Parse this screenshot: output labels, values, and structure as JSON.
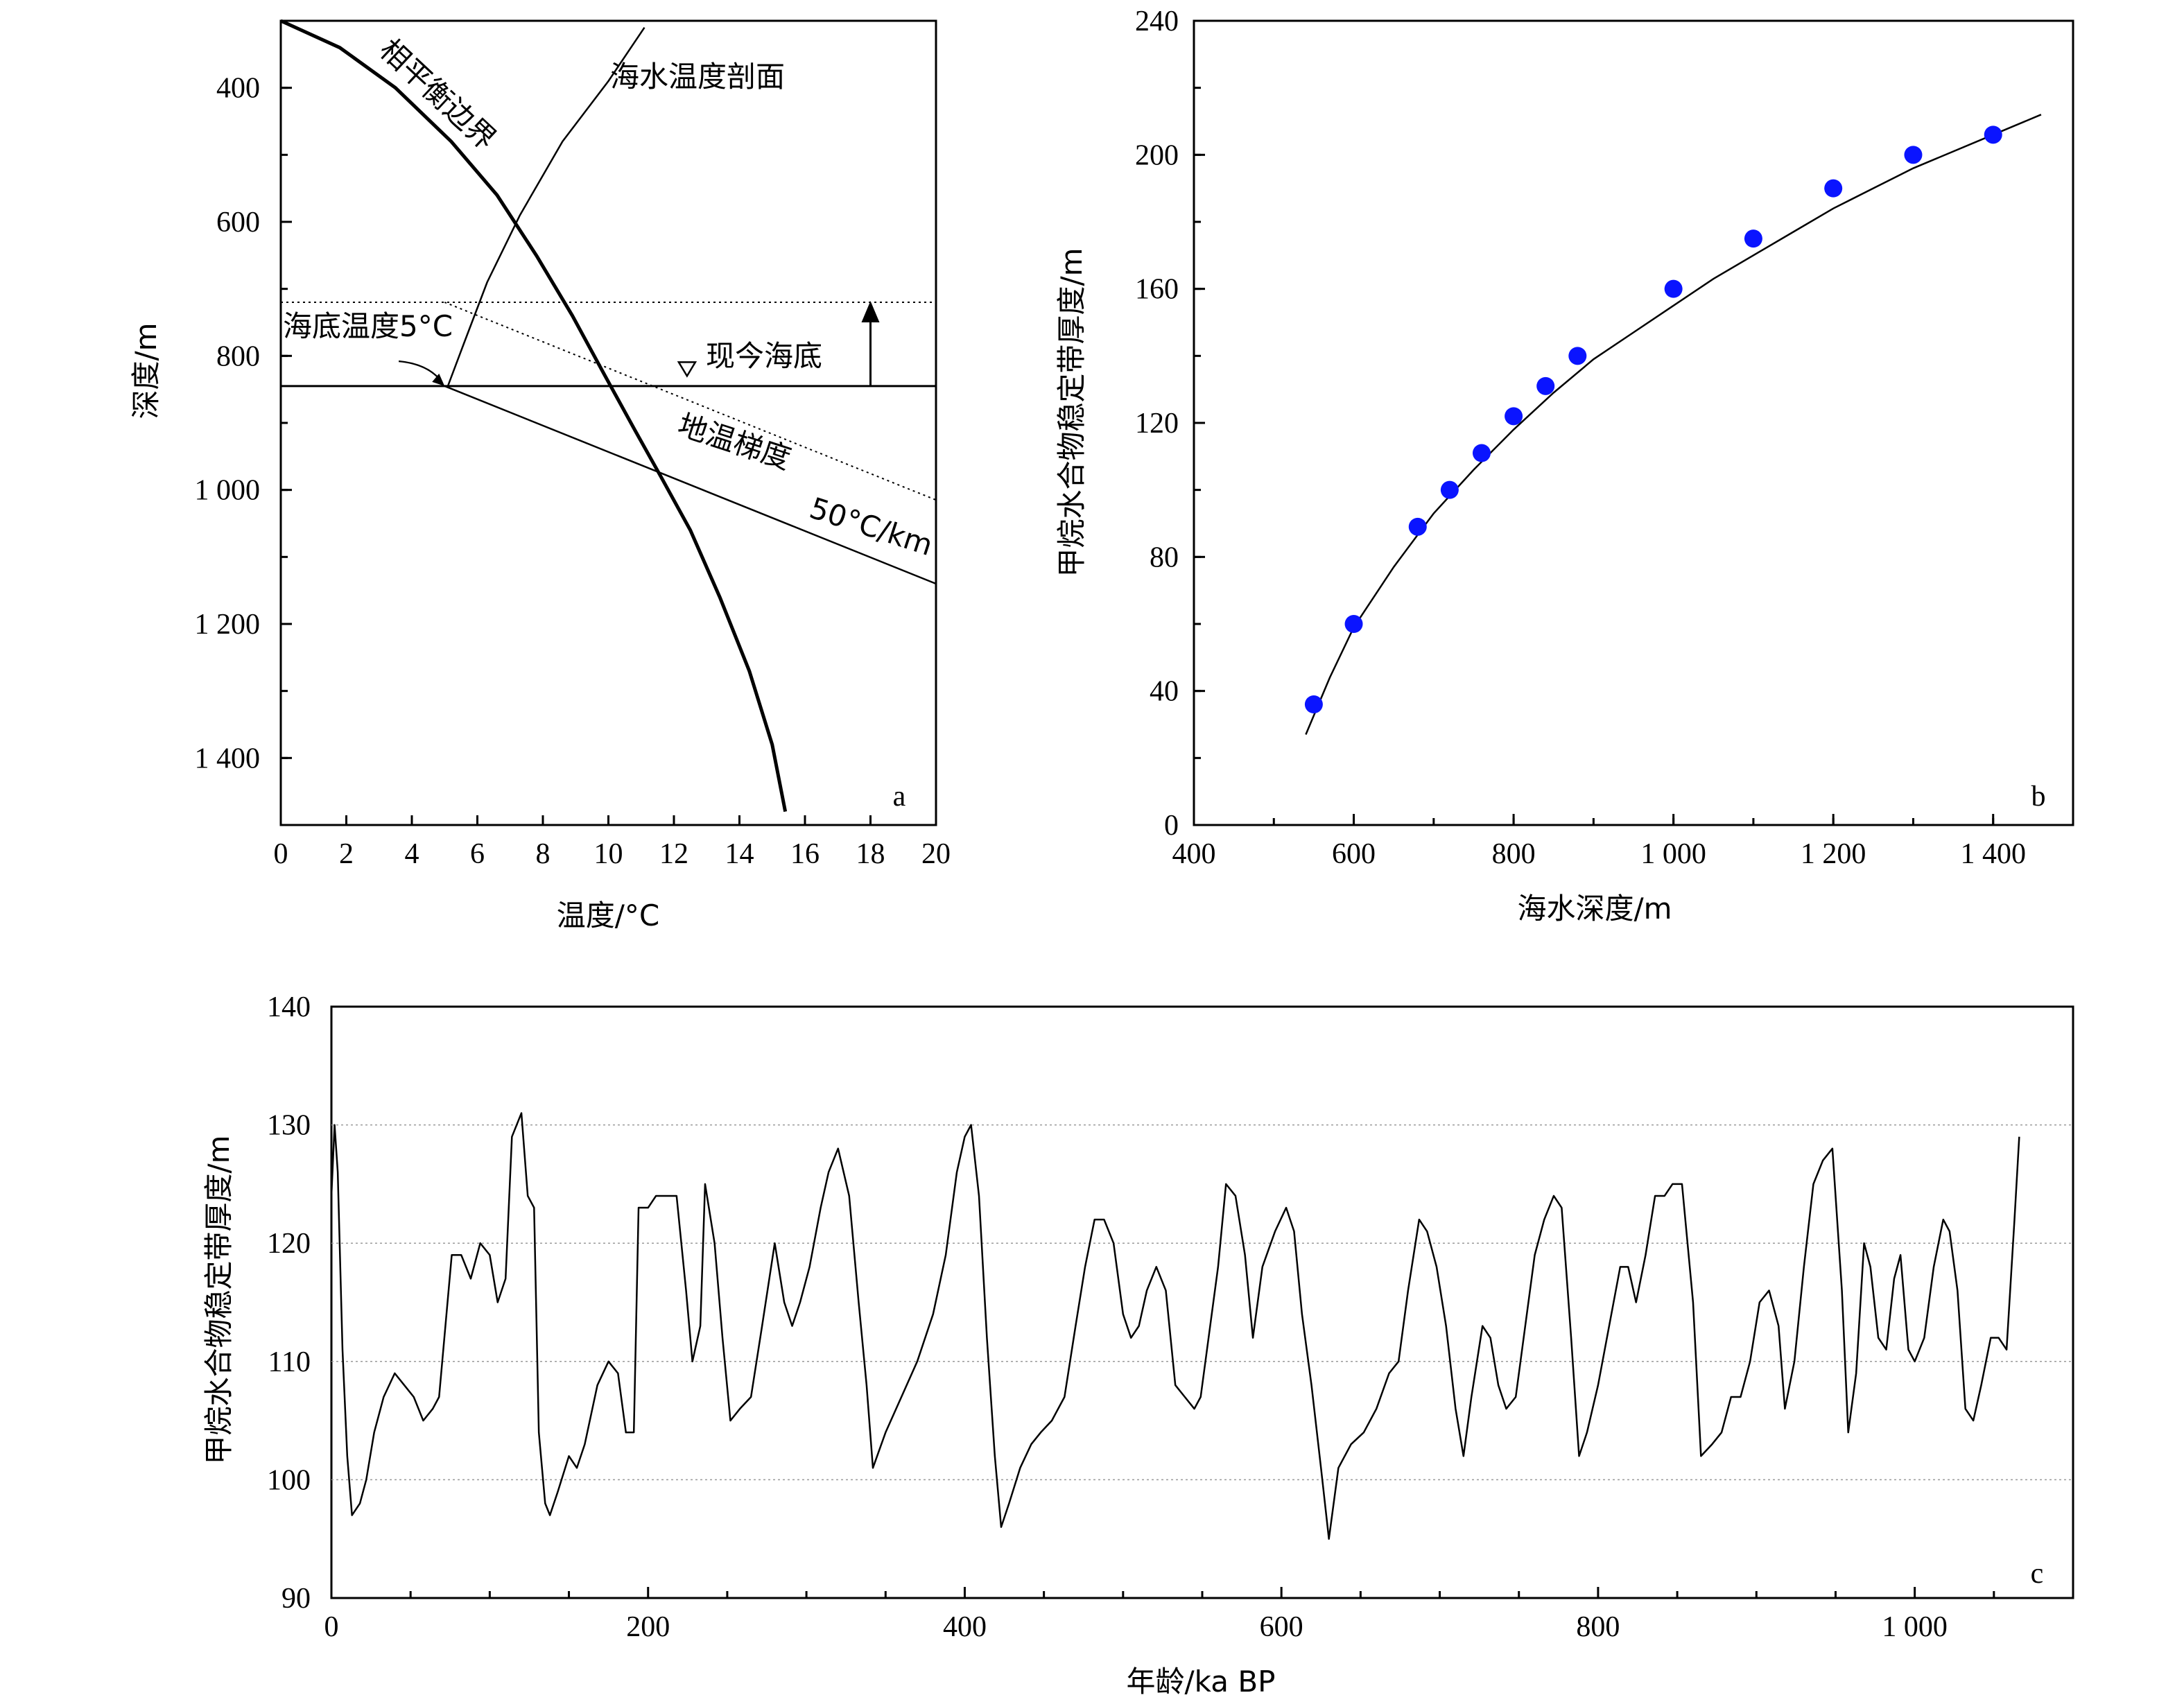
{
  "chart_data": [
    {
      "panel": "a",
      "type": "line",
      "xlabel": "温度/°C",
      "ylabel": "深度/m",
      "xlim": [
        0,
        20
      ],
      "ylim": [
        300,
        1500
      ],
      "y_inverted": true,
      "xticks": [
        "0",
        "2",
        "4",
        "6",
        "8",
        "10",
        "12",
        "14",
        "16",
        "18",
        "20"
      ],
      "yticks": [
        {
          "value": 400,
          "label": "400"
        },
        {
          "value": 600,
          "label": "600"
        },
        {
          "value": 800,
          "label": "800"
        },
        {
          "value": 1000,
          "label": "1 000"
        },
        {
          "value": 1200,
          "label": "1 200"
        },
        {
          "value": 1400,
          "label": "1 400"
        }
      ],
      "series": [
        {
          "name": "相平衡边界",
          "style": "thick",
          "points": [
            [
              0,
              300
            ],
            [
              1.8,
              340
            ],
            [
              3.5,
              400
            ],
            [
              5.2,
              480
            ],
            [
              6.6,
              560
            ],
            [
              7.8,
              650
            ],
            [
              8.9,
              740
            ],
            [
              9.9,
              830
            ],
            [
              10.8,
              910
            ],
            [
              11.6,
              980
            ],
            [
              12.5,
              1060
            ],
            [
              13.4,
              1160
            ],
            [
              14.3,
              1270
            ],
            [
              15.0,
              1380
            ],
            [
              15.4,
              1480
            ]
          ]
        },
        {
          "name": "海水温度剖面",
          "style": "thin",
          "points": [
            [
              5.1,
              845
            ],
            [
              5.6,
              780
            ],
            [
              6.3,
              690
            ],
            [
              7.3,
              590
            ],
            [
              8.6,
              480
            ],
            [
              10.0,
              390
            ],
            [
              11.1,
              310
            ]
          ]
        },
        {
          "name": "地温梯度",
          "style": "thin",
          "points": [
            [
              5.0,
              845
            ],
            [
              20.0,
              1140
            ]
          ]
        },
        {
          "name": "",
          "style": "dotted",
          "points": [
            [
              5.0,
              720
            ],
            [
              20.0,
              1015
            ]
          ]
        }
      ],
      "hlines": [
        {
          "y": 845,
          "style": "solid"
        },
        {
          "y": 720,
          "style": "dotted"
        }
      ],
      "annotations": {
        "phase_boundary": "相平衡边界",
        "water_profile": "海水温度剖面",
        "seafloor_temp": "海底温度5°C",
        "present_seafloor": "现今海底",
        "gradient": "地温梯度",
        "gradient_value": "50°C/km"
      },
      "panel_letter": "a"
    },
    {
      "panel": "b",
      "type": "scatter",
      "xlabel": "海水深度/m",
      "ylabel": "甲烷水合物稳定带厚度/m",
      "xlim": [
        400,
        1500
      ],
      "ylim": [
        0,
        240
      ],
      "xticks": [
        {
          "value": 400,
          "label": "400"
        },
        {
          "value": 600,
          "label": "600"
        },
        {
          "value": 800,
          "label": "800"
        },
        {
          "value": 1000,
          "label": "1 000"
        },
        {
          "value": 1200,
          "label": "1 200"
        },
        {
          "value": 1400,
          "label": "1 400"
        }
      ],
      "yticks": [
        "0",
        "40",
        "80",
        "120",
        "160",
        "200",
        "240"
      ],
      "points": [
        [
          550,
          36
        ],
        [
          600,
          60
        ],
        [
          680,
          89
        ],
        [
          720,
          100
        ],
        [
          760,
          111
        ],
        [
          800,
          122
        ],
        [
          840,
          131
        ],
        [
          880,
          140
        ],
        [
          1000,
          160
        ],
        [
          1100,
          175
        ],
        [
          1200,
          190
        ],
        [
          1300,
          200
        ],
        [
          1400,
          206
        ]
      ],
      "fit_curve": [
        [
          540,
          27
        ],
        [
          570,
          44
        ],
        [
          600,
          59
        ],
        [
          650,
          77
        ],
        [
          700,
          93
        ],
        [
          750,
          106
        ],
        [
          800,
          118
        ],
        [
          850,
          129
        ],
        [
          900,
          139
        ],
        [
          950,
          147
        ],
        [
          1000,
          155
        ],
        [
          1050,
          163
        ],
        [
          1100,
          170
        ],
        [
          1150,
          177
        ],
        [
          1200,
          184
        ],
        [
          1250,
          190
        ],
        [
          1300,
          196
        ],
        [
          1350,
          201
        ],
        [
          1400,
          206
        ],
        [
          1460,
          212
        ]
      ],
      "point_color": "#0a14ff",
      "panel_letter": "b"
    },
    {
      "panel": "c",
      "type": "line",
      "xlabel": "年龄/ka BP",
      "ylabel": "甲烷水合物稳定带厚度/m",
      "xlim": [
        0,
        1100
      ],
      "ylim": [
        90,
        140
      ],
      "grid": "horizontal dotted",
      "xticks": [
        {
          "value": 0,
          "label": "0"
        },
        {
          "value": 200,
          "label": "200"
        },
        {
          "value": 400,
          "label": "400"
        },
        {
          "value": 600,
          "label": "600"
        },
        {
          "value": 800,
          "label": "800"
        },
        {
          "value": 1000,
          "label": "1 000"
        }
      ],
      "yticks": [
        "90",
        "100",
        "110",
        "120",
        "130",
        "140"
      ],
      "series_points": [
        [
          0,
          124
        ],
        [
          2,
          130
        ],
        [
          4,
          126
        ],
        [
          7,
          111
        ],
        [
          10,
          102
        ],
        [
          13,
          97
        ],
        [
          18,
          98
        ],
        [
          22,
          100
        ],
        [
          27,
          104
        ],
        [
          33,
          107
        ],
        [
          40,
          109
        ],
        [
          46,
          108
        ],
        [
          52,
          107
        ],
        [
          58,
          105
        ],
        [
          64,
          106
        ],
        [
          68,
          107
        ],
        [
          72,
          113
        ],
        [
          76,
          119
        ],
        [
          82,
          119
        ],
        [
          88,
          117
        ],
        [
          94,
          120
        ],
        [
          100,
          119
        ],
        [
          105,
          115
        ],
        [
          110,
          117
        ],
        [
          114,
          129
        ],
        [
          120,
          131
        ],
        [
          124,
          124
        ],
        [
          128,
          123
        ],
        [
          131,
          104
        ],
        [
          135,
          98
        ],
        [
          138,
          97
        ],
        [
          143,
          99
        ],
        [
          150,
          102
        ],
        [
          155,
          101
        ],
        [
          160,
          103
        ],
        [
          168,
          108
        ],
        [
          175,
          110
        ],
        [
          181,
          109
        ],
        [
          186,
          104
        ],
        [
          191,
          104
        ],
        [
          194,
          123
        ],
        [
          200,
          123
        ],
        [
          205,
          124
        ],
        [
          212,
          124
        ],
        [
          218,
          124
        ],
        [
          224,
          116
        ],
        [
          228,
          110
        ],
        [
          233,
          113
        ],
        [
          236,
          125
        ],
        [
          242,
          120
        ],
        [
          247,
          112
        ],
        [
          252,
          105
        ],
        [
          258,
          106
        ],
        [
          265,
          107
        ],
        [
          272,
          113
        ],
        [
          280,
          120
        ],
        [
          286,
          115
        ],
        [
          291,
          113
        ],
        [
          296,
          115
        ],
        [
          302,
          118
        ],
        [
          309,
          123
        ],
        [
          314,
          126
        ],
        [
          320,
          128
        ],
        [
          327,
          124
        ],
        [
          333,
          115
        ],
        [
          338,
          108
        ],
        [
          342,
          101
        ],
        [
          350,
          104
        ],
        [
          360,
          107
        ],
        [
          370,
          110
        ],
        [
          380,
          114
        ],
        [
          388,
          119
        ],
        [
          395,
          126
        ],
        [
          400,
          129
        ],
        [
          404,
          130
        ],
        [
          409,
          124
        ],
        [
          414,
          112
        ],
        [
          419,
          102
        ],
        [
          423,
          96
        ],
        [
          428,
          98
        ],
        [
          435,
          101
        ],
        [
          442,
          103
        ],
        [
          448,
          104
        ],
        [
          455,
          105
        ],
        [
          463,
          107
        ],
        [
          470,
          113
        ],
        [
          476,
          118
        ],
        [
          482,
          122
        ],
        [
          488,
          122
        ],
        [
          494,
          120
        ],
        [
          500,
          114
        ],
        [
          505,
          112
        ],
        [
          510,
          113
        ],
        [
          515,
          116
        ],
        [
          521,
          118
        ],
        [
          527,
          116
        ],
        [
          533,
          108
        ],
        [
          539,
          107
        ],
        [
          545,
          106
        ],
        [
          549,
          107
        ],
        [
          555,
          113
        ],
        [
          560,
          118
        ],
        [
          565,
          125
        ],
        [
          571,
          124
        ],
        [
          577,
          119
        ],
        [
          582,
          112
        ],
        [
          588,
          118
        ],
        [
          596,
          121
        ],
        [
          603,
          123
        ],
        [
          608,
          121
        ],
        [
          613,
          114
        ],
        [
          619,
          108
        ],
        [
          625,
          101
        ],
        [
          630,
          95
        ],
        [
          636,
          101
        ],
        [
          644,
          103
        ],
        [
          652,
          104
        ],
        [
          660,
          106
        ],
        [
          668,
          109
        ],
        [
          674,
          110
        ],
        [
          680,
          116
        ],
        [
          687,
          122
        ],
        [
          692,
          121
        ],
        [
          698,
          118
        ],
        [
          704,
          113
        ],
        [
          710,
          106
        ],
        [
          715,
          102
        ],
        [
          720,
          107
        ],
        [
          727,
          113
        ],
        [
          732,
          112
        ],
        [
          737,
          108
        ],
        [
          742,
          106
        ],
        [
          748,
          107
        ],
        [
          754,
          113
        ],
        [
          760,
          119
        ],
        [
          766,
          122
        ],
        [
          772,
          124
        ],
        [
          777,
          123
        ],
        [
          783,
          112
        ],
        [
          788,
          102
        ],
        [
          793,
          104
        ],
        [
          800,
          108
        ],
        [
          807,
          113
        ],
        [
          814,
          118
        ],
        [
          819,
          118
        ],
        [
          824,
          115
        ],
        [
          830,
          119
        ],
        [
          836,
          124
        ],
        [
          842,
          124
        ],
        [
          847,
          125
        ],
        [
          853,
          125
        ],
        [
          860,
          115
        ],
        [
          865,
          102
        ],
        [
          872,
          103
        ],
        [
          878,
          104
        ],
        [
          884,
          107
        ],
        [
          890,
          107
        ],
        [
          896,
          110
        ],
        [
          902,
          115
        ],
        [
          908,
          116
        ],
        [
          914,
          113
        ],
        [
          918,
          106
        ],
        [
          924,
          110
        ],
        [
          930,
          118
        ],
        [
          936,
          125
        ],
        [
          942,
          127
        ],
        [
          948,
          128
        ],
        [
          954,
          116
        ],
        [
          958,
          104
        ],
        [
          963,
          109
        ],
        [
          968,
          120
        ],
        [
          972,
          118
        ],
        [
          977,
          112
        ],
        [
          982,
          111
        ],
        [
          987,
          117
        ],
        [
          991,
          119
        ],
        [
          996,
          111
        ],
        [
          1000,
          110
        ],
        [
          1006,
          112
        ],
        [
          1012,
          118
        ],
        [
          1018,
          122
        ],
        [
          1022,
          121
        ],
        [
          1027,
          116
        ],
        [
          1032,
          106
        ],
        [
          1037,
          105
        ],
        [
          1042,
          108
        ],
        [
          1048,
          112
        ],
        [
          1053,
          112
        ],
        [
          1058,
          111
        ],
        [
          1063,
          122
        ],
        [
          1066,
          129
        ]
      ],
      "panel_letter": "c"
    }
  ]
}
